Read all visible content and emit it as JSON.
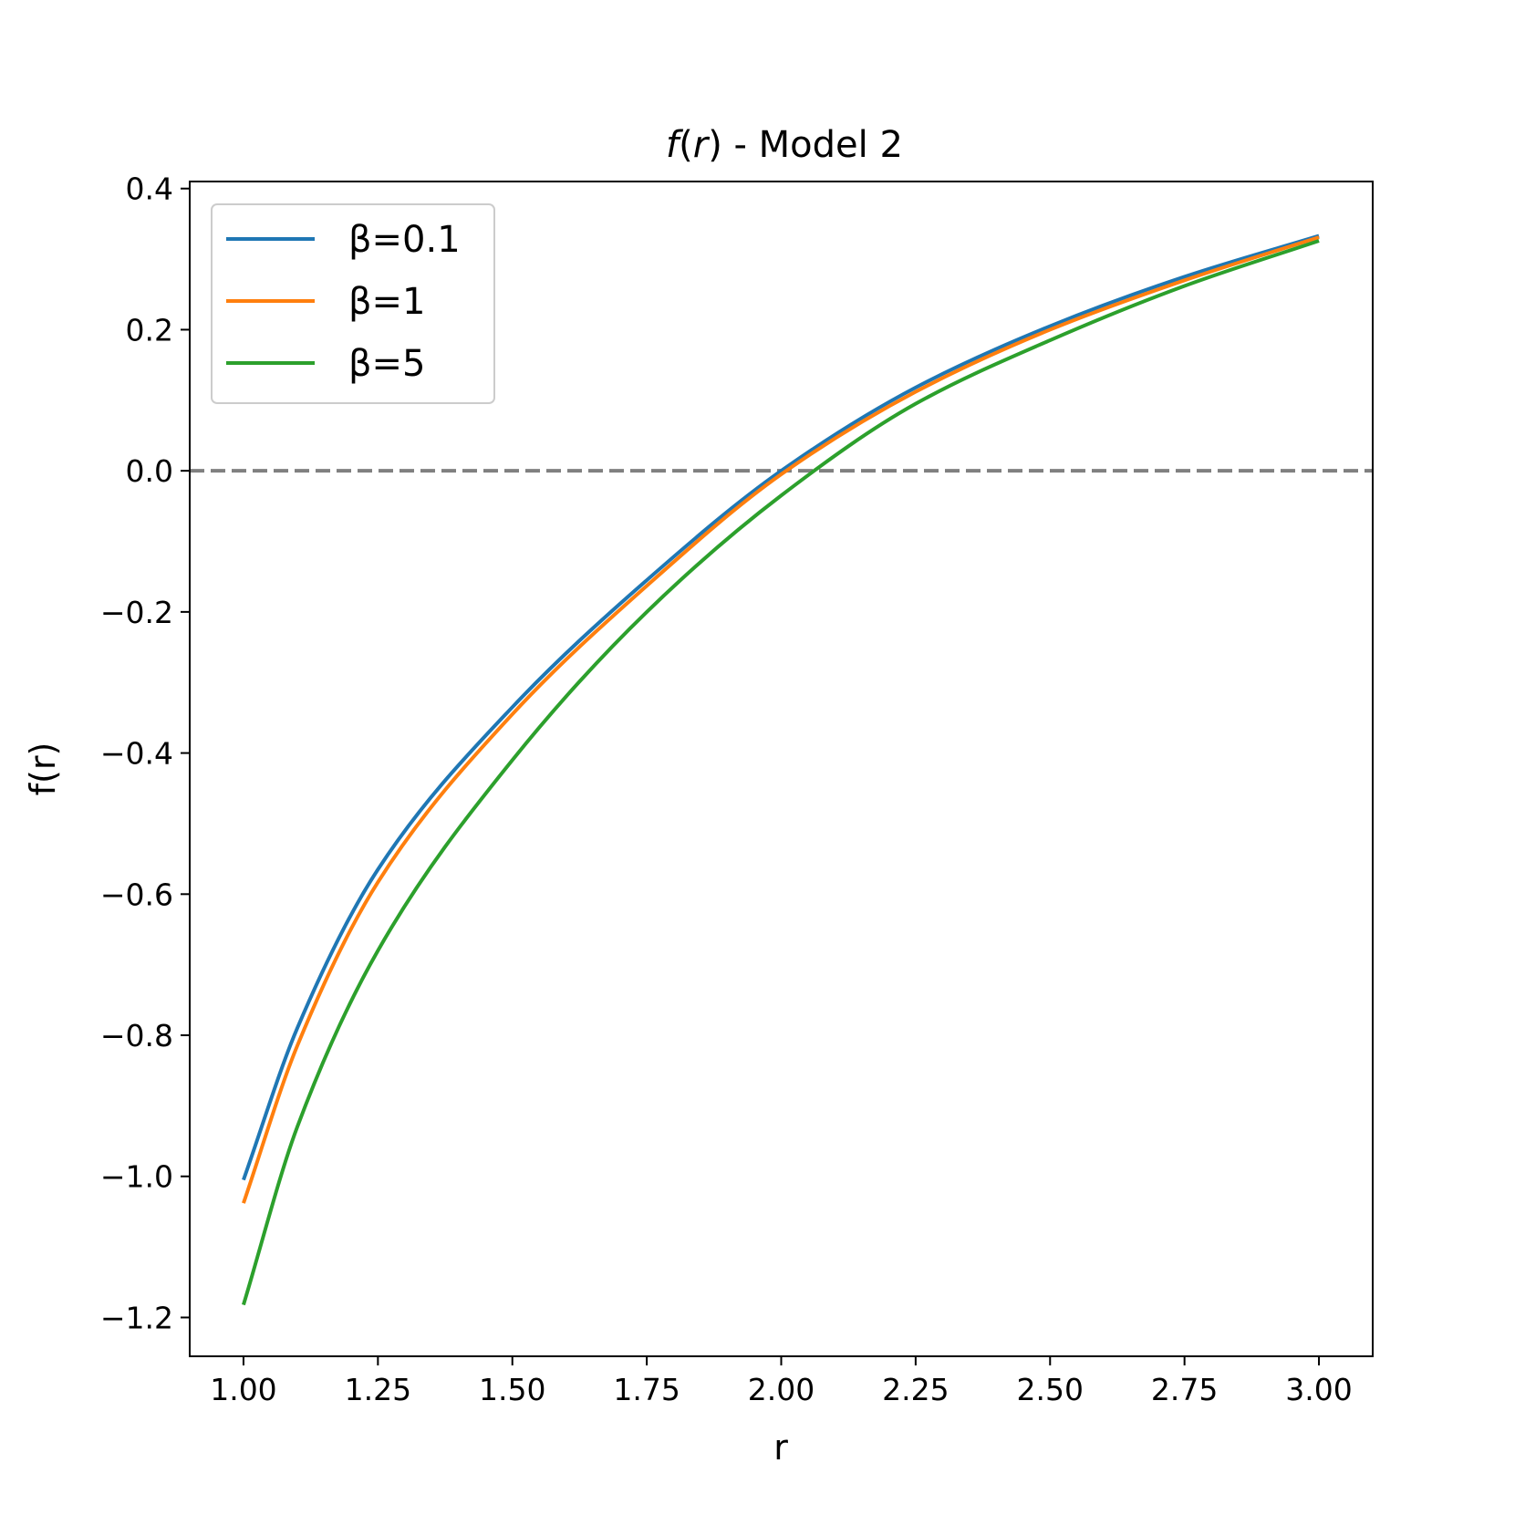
{
  "chart_data": {
    "type": "line",
    "title_italic": "f",
    "title_open": "(",
    "title_italic_r": "r",
    "title_rest": ") - Model 2",
    "xlabel": "r",
    "ylabel": "f(r)",
    "xlim": [
      0.9,
      3.1
    ],
    "ylim": [
      -1.255,
      0.41
    ],
    "x_ticks": [
      1.0,
      1.25,
      1.5,
      1.75,
      2.0,
      2.25,
      2.5,
      2.75,
      3.0
    ],
    "x_tick_labels": [
      "1.00",
      "1.25",
      "1.50",
      "1.75",
      "2.00",
      "2.25",
      "2.50",
      "2.75",
      "3.00"
    ],
    "y_ticks": [
      0.4,
      0.2,
      0.0,
      -0.2,
      -0.4,
      -0.6,
      -0.8,
      -1.0,
      -1.2
    ],
    "y_tick_labels": [
      "0.4",
      "0.2",
      "0.0",
      "−0.2",
      "−0.4",
      "−0.6",
      "−0.8",
      "−1.0",
      "−1.2"
    ],
    "grid": false,
    "legend_position": "upper-left",
    "reference_line": {
      "y": 0.0,
      "style": "dashed",
      "color": "#808080"
    },
    "series": [
      {
        "name": "β=0.1",
        "color": "#1f77b4",
        "x": [
          1.0,
          1.1,
          1.25,
          1.5,
          1.75,
          2.0,
          2.25,
          2.5,
          2.75,
          3.0
        ],
        "y": [
          -1.005,
          -0.79,
          -0.565,
          -0.335,
          -0.155,
          0.0,
          0.118,
          0.205,
          0.275,
          0.333
        ]
      },
      {
        "name": "β=1",
        "color": "#ff7f0e",
        "x": [
          1.0,
          1.1,
          1.25,
          1.5,
          1.75,
          2.0,
          2.25,
          2.5,
          2.75,
          3.0
        ],
        "y": [
          -1.038,
          -0.815,
          -0.583,
          -0.345,
          -0.163,
          -0.005,
          0.112,
          0.2,
          0.27,
          0.331
        ]
      },
      {
        "name": "β=5",
        "color": "#2ca02c",
        "x": [
          1.0,
          1.1,
          1.25,
          1.5,
          1.75,
          2.0,
          2.25,
          2.5,
          2.75,
          3.0
        ],
        "y": [
          -1.182,
          -0.93,
          -0.68,
          -0.41,
          -0.2,
          -0.035,
          0.095,
          0.185,
          0.262,
          0.326
        ]
      }
    ]
  }
}
